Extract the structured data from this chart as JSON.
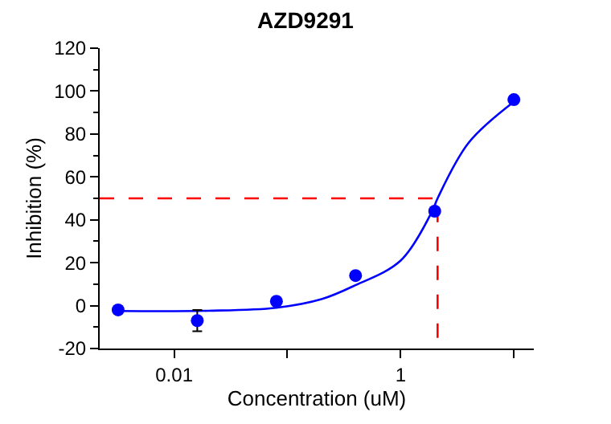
{
  "chart_data": {
    "type": "scatter",
    "title": "AZD9291",
    "xlabel": "Concentration (uM)",
    "ylabel": "Inhibition (%)",
    "log": "x",
    "xlim": [
      0.0022,
      15
    ],
    "xticks": [
      0.01,
      {
        "value": 0.1,
        "label": null
      },
      1,
      {
        "value": 10,
        "label": null
      }
    ],
    "ylim": [
      -20,
      120
    ],
    "yticks": [
      -20,
      0,
      20,
      40,
      60,
      80,
      100,
      120
    ],
    "series": [
      {
        "type": "line",
        "color": "#0000ff",
        "line_style": "solid",
        "marker": "none",
        "x": [
          0.0032,
          0.02,
          0.08,
          0.2,
          0.38,
          1,
          1.9,
          2.12,
          4,
          10
        ],
        "values": [
          -2.5,
          -2.4,
          -1,
          3,
          9,
          21,
          44,
          50,
          76,
          95
        ]
      },
      {
        "type": "line",
        "color": "#ff0000",
        "line_style": "dashed",
        "marker": "none",
        "x": [
          0.0022,
          2.12,
          2.12
        ],
        "values": [
          50,
          50,
          -20
        ]
      },
      {
        "color": "#0000ff",
        "marker": "circle",
        "x": [
          0.0032,
          0.016,
          0.08,
          0.4,
          2,
          10
        ],
        "values": [
          -2,
          -7,
          2,
          14,
          44,
          96
        ],
        "errors": [
          null,
          5,
          null,
          null,
          null,
          null
        ]
      }
    ]
  }
}
